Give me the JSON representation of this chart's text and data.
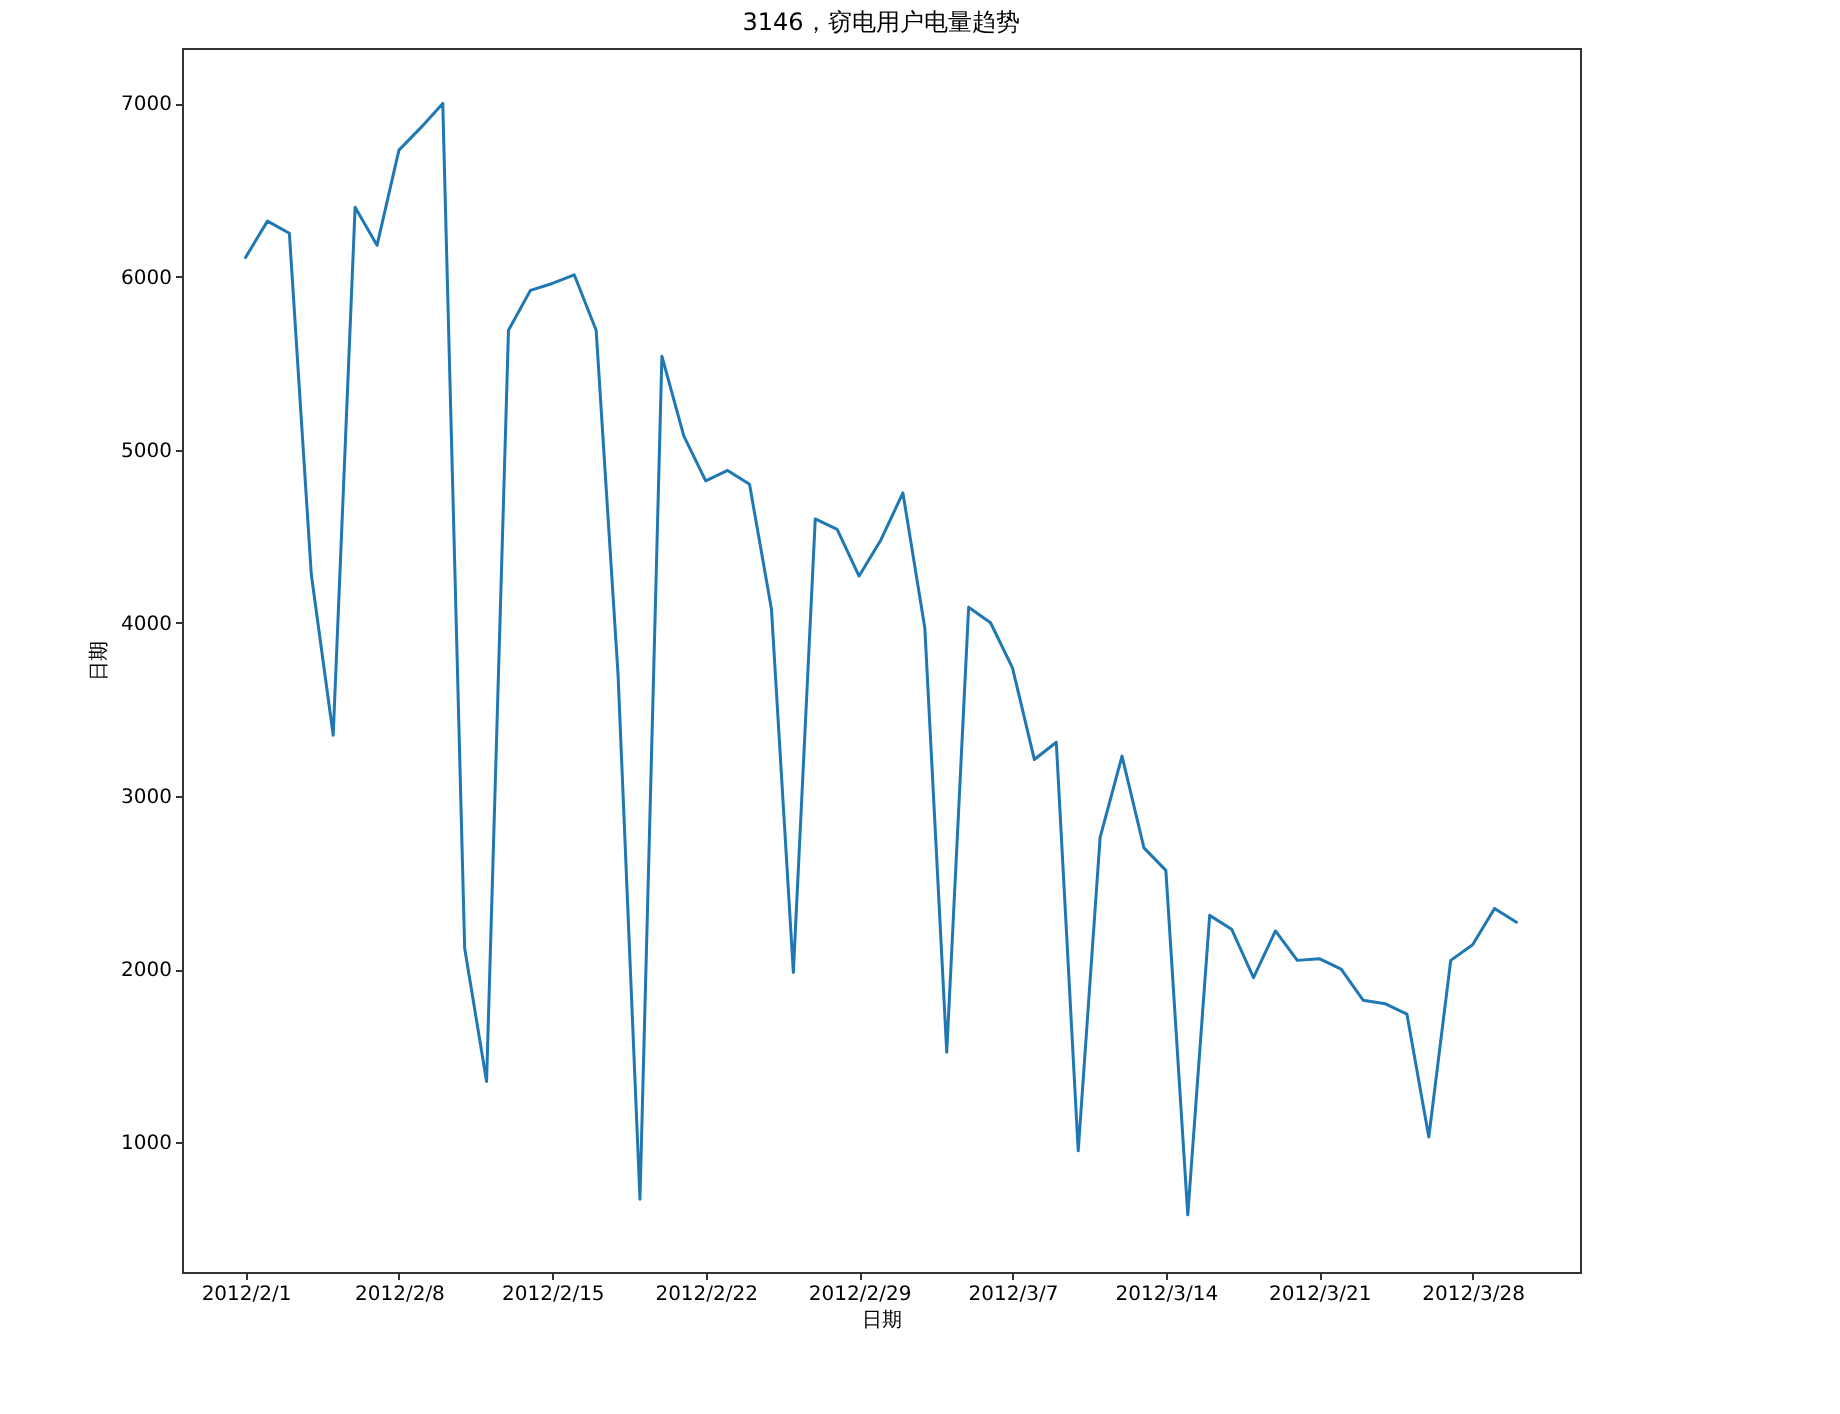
{
  "chart_data": {
    "type": "line",
    "title": "3146，窃电用户电量趋势",
    "xlabel": "日期",
    "ylabel": "日期",
    "x": [
      "2012-02-01",
      "2012-02-02",
      "2012-02-03",
      "2012-02-04",
      "2012-02-05",
      "2012-02-06",
      "2012-02-07",
      "2012-02-08",
      "2012-02-09",
      "2012-02-10",
      "2012-02-11",
      "2012-02-12",
      "2012-02-13",
      "2012-02-14",
      "2012-02-15",
      "2012-02-16",
      "2012-02-17",
      "2012-02-18",
      "2012-02-19",
      "2012-02-20",
      "2012-02-21",
      "2012-02-22",
      "2012-02-23",
      "2012-02-24",
      "2012-02-25",
      "2012-02-26",
      "2012-02-27",
      "2012-02-28",
      "2012-02-29",
      "2012-03-01",
      "2012-03-02",
      "2012-03-03",
      "2012-03-04",
      "2012-03-05",
      "2012-03-06",
      "2012-03-07",
      "2012-03-08",
      "2012-03-09",
      "2012-03-10",
      "2012-03-11",
      "2012-03-12",
      "2012-03-13",
      "2012-03-14",
      "2012-03-15",
      "2012-03-16",
      "2012-03-17",
      "2012-03-18",
      "2012-03-19",
      "2012-03-20",
      "2012-03-21",
      "2012-03-22",
      "2012-03-23",
      "2012-03-24",
      "2012-03-25",
      "2012-03-26",
      "2012-03-27",
      "2012-03-28",
      "2012-03-29",
      "2012-03-30"
    ],
    "series": [
      {
        "color": "#1f77b4",
        "values": [
          6110,
          6320,
          6250,
          4280,
          3350,
          6400,
          6180,
          6730,
          6860,
          7000,
          2120,
          1350,
          5690,
          5920,
          5960,
          6010,
          5690,
          3700,
          670,
          5540,
          5080,
          4820,
          4880,
          4800,
          4080,
          1980,
          4600,
          4540,
          4270,
          4480,
          4750,
          3970,
          1520,
          4090,
          4000,
          3740,
          3210,
          3310,
          950,
          2760,
          3230,
          2700,
          2570,
          580,
          2310,
          2230,
          1950,
          2220,
          2050,
          2060,
          2000,
          1820,
          1800,
          1740,
          1030,
          2050,
          2140,
          2350,
          2270
        ]
      }
    ],
    "xlim": [
      "2012-01-29T02:24",
      "2012-04-01T21:36"
    ],
    "xticks": [
      {
        "value": "2012-02-01",
        "label": "2012/2/1"
      },
      {
        "value": "2012-02-08",
        "label": "2012/2/8"
      },
      {
        "value": "2012-02-15",
        "label": "2012/2/15"
      },
      {
        "value": "2012-02-22",
        "label": "2012/2/22"
      },
      {
        "value": "2012-02-29",
        "label": "2012/2/29"
      },
      {
        "value": "2012-03-07",
        "label": "2012/3/7"
      },
      {
        "value": "2012-03-14",
        "label": "2012/3/14"
      },
      {
        "value": "2012-03-21",
        "label": "2012/3/21"
      },
      {
        "value": "2012-03-28",
        "label": "2012/3/28"
      }
    ],
    "ylim": [
      250,
      7320
    ],
    "yticks": [
      1000,
      2000,
      3000,
      4000,
      5000,
      6000,
      7000
    ],
    "grid": false,
    "line_style": "solid"
  }
}
